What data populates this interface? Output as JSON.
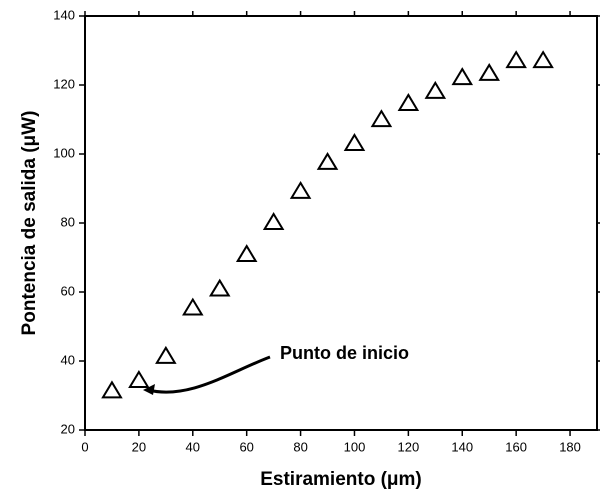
{
  "chart_data": {
    "type": "scatter",
    "x": [
      10,
      20,
      30,
      40,
      50,
      60,
      70,
      80,
      90,
      100,
      110,
      120,
      130,
      140,
      150,
      160,
      170
    ],
    "values": [
      31.5,
      34.5,
      41.5,
      55.5,
      61,
      71,
      80.3,
      89.3,
      97.7,
      103.2,
      110.1,
      114.8,
      118.3,
      122.3,
      123.5,
      127.2,
      127.2
    ],
    "color": "#000000",
    "xlabel": "Estiramiento (μm)",
    "ylabel": "Pontencia de salida (μW)",
    "annotation": "Punto de inicio",
    "xlim": [
      0,
      190
    ],
    "xticks": [
      0,
      20,
      40,
      60,
      80,
      100,
      120,
      140,
      160,
      180
    ],
    "ylim": [
      20,
      140
    ],
    "yticks": [
      20,
      40,
      60,
      80,
      100,
      120,
      140
    ]
  }
}
